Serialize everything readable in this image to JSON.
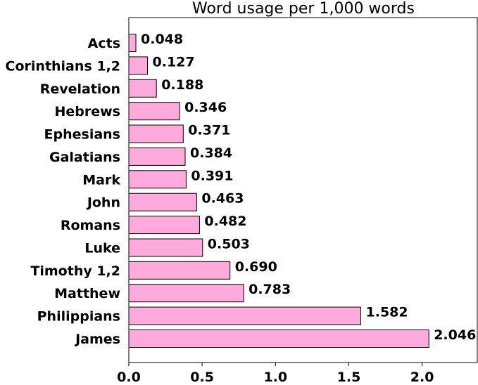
{
  "chart_data": {
    "type": "bar",
    "orientation": "horizontal",
    "title": "Word usage per 1,000 words",
    "xlabel": "",
    "ylabel": "",
    "categories": [
      "Acts",
      "Corinthians 1,2",
      "Revelation",
      "Hebrews",
      "Ephesians",
      "Galatians",
      "Mark",
      "John",
      "Romans",
      "Luke",
      "Timothy 1,2",
      "Matthew",
      "Philippians",
      "James"
    ],
    "values": [
      0.048,
      0.127,
      0.188,
      0.346,
      0.371,
      0.384,
      0.391,
      0.463,
      0.482,
      0.503,
      0.69,
      0.783,
      1.582,
      2.046
    ],
    "value_labels": [
      "0.048",
      "0.127",
      "0.188",
      "0.346",
      "0.371",
      "0.384",
      "0.391",
      "0.463",
      "0.482",
      "0.503",
      "0.690",
      "0.783",
      "1.582",
      "2.046"
    ],
    "xlim": [
      0,
      2.4
    ],
    "xticks": [
      0.0,
      0.5,
      1.0,
      1.5,
      2.0
    ],
    "xtick_labels": [
      "0.0",
      "0.5",
      "1.0",
      "1.5",
      "2.0"
    ],
    "grid": false,
    "bar_color": "#ffaadd",
    "edge_color": "#000000"
  }
}
